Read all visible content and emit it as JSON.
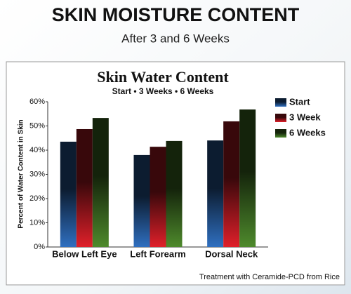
{
  "header": {
    "title": "SKIN MOISTURE CONTENT",
    "subtitle": "After 3 and 6 Weeks"
  },
  "chart_data": {
    "type": "bar",
    "title": "Skin Water Content",
    "subtitle": "Start • 3 Weeks • 6 Weeks",
    "y_label": "Percent of Water Content in Skin",
    "categories": [
      "Below Left Eye",
      "Left Forearm",
      "Dorsal Neck"
    ],
    "series": [
      {
        "name": "Start",
        "color": "#2f6fc0",
        "values": [
          43.5,
          38,
          44
        ]
      },
      {
        "name": "3 Week",
        "color": "#e0202a",
        "values": [
          48.7,
          41.4,
          51.9
        ]
      },
      {
        "name": "6 Weeks",
        "color": "#4e8a2c",
        "values": [
          53.3,
          43.8,
          56.8
        ]
      }
    ],
    "ylim": [
      0,
      60
    ],
    "yticks": [
      {
        "value": 0,
        "label": "0%"
      },
      {
        "value": 10,
        "label": "10%"
      },
      {
        "value": 20,
        "label": "20%"
      },
      {
        "value": 30,
        "label": "30%"
      },
      {
        "value": 40,
        "label": "40%"
      },
      {
        "value": 50,
        "label": "50%"
      },
      {
        "value": 60,
        "label": "60%"
      }
    ],
    "legend": "right",
    "note": "Treatment with Ceramide-PCD from Rice"
  }
}
